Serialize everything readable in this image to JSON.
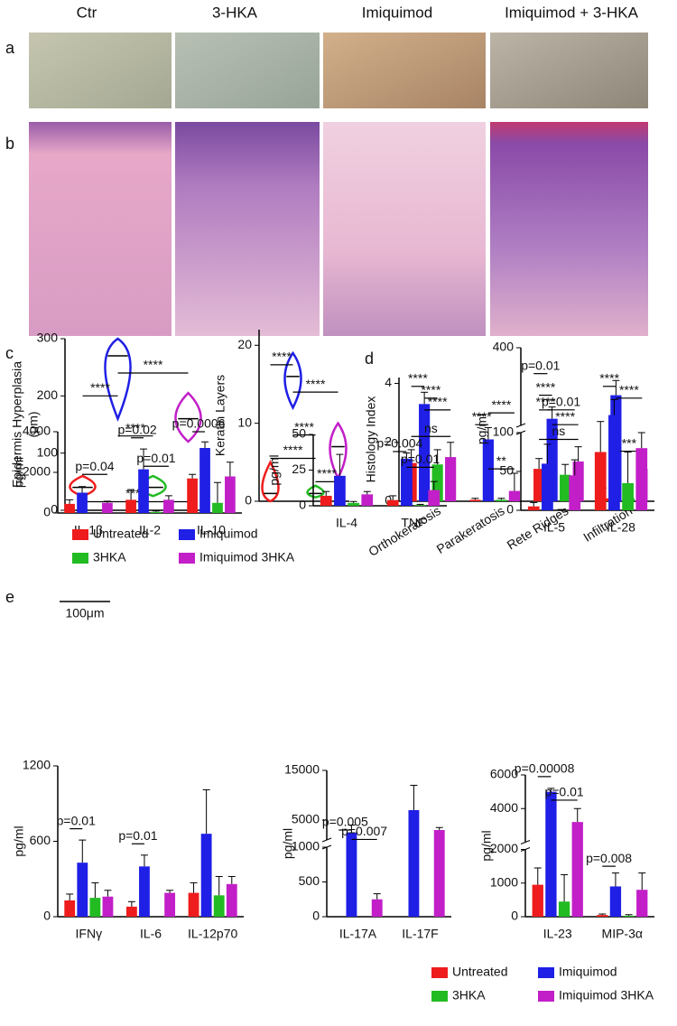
{
  "panels": [
    "a",
    "b",
    "c",
    "d",
    "e"
  ],
  "image_labels": [
    "Ctr",
    "3-HKA",
    "Imiquimod",
    "Imiquimod + 3-HKA"
  ],
  "scale_bar": "100μm",
  "legend": [
    {
      "name": "Untreated",
      "color": "#ee1c1c"
    },
    {
      "name": "Imiquimod",
      "color": "#1f1fe6"
    },
    {
      "name": "3HKA",
      "color": "#22bb22"
    },
    {
      "name": "Imiquimod 3HKA",
      "color": "#c21fc8"
    }
  ],
  "chart_data": [
    {
      "type": "violin",
      "y_label": [
        "Epidermis Hyperplasia",
        "(μm)"
      ],
      "ylim": [
        0,
        300
      ],
      "yticks": [
        0,
        100,
        200,
        300
      ],
      "mins": [
        25,
        160,
        25,
        120
      ],
      "medians": [
        40,
        270,
        40,
        160
      ],
      "maxs": [
        60,
        300,
        60,
        205
      ],
      "annotations": [
        {
          "text": "****",
          "from": 0,
          "to": 1,
          "y": 200
        },
        {
          "text": "****",
          "from": 1,
          "to": 3,
          "y": 240
        },
        {
          "text": "****",
          "from": 1,
          "to": 2,
          "y": 130
        },
        {
          "text": "****",
          "from": 0,
          "to": 3,
          "y": 15
        }
      ]
    },
    {
      "type": "violin",
      "y_label": "Keratin Layers",
      "ylim": [
        0,
        22
      ],
      "yticks": [
        0,
        10,
        20
      ],
      "mins": [
        0,
        12,
        0.5,
        3
      ],
      "medians": [
        1,
        16,
        1,
        7
      ],
      "maxs": [
        5,
        19,
        2,
        10
      ],
      "annotations": [
        {
          "text": "****",
          "from": 0,
          "to": 1,
          "y": 17.5
        },
        {
          "text": "****",
          "from": 1,
          "to": 3,
          "y": 14
        },
        {
          "text": "****",
          "from": 1,
          "to": 2,
          "y": 8.5
        },
        {
          "text": "****",
          "from": 0,
          "to": 2,
          "y": 5.5
        },
        {
          "text": "****",
          "from": 2,
          "to": 3,
          "y": 2.5
        }
      ]
    },
    {
      "type": "bar",
      "y_label": "Histology Index",
      "categories": [
        "Orthokeratosis",
        "Parakeratosis",
        "Rete Ridges",
        "Infiltration"
      ],
      "ylim": [
        0,
        4.2
      ],
      "yticks": [
        0,
        2,
        4
      ],
      "series": [
        {
          "values": [
            1.3,
            0.05,
            1.1,
            0.1
          ],
          "errors": [
            0.45,
            0.05,
            0.35,
            0.35
          ]
        },
        {
          "values": [
            3.3,
            2.1,
            2.8,
            3.6
          ],
          "errors": [
            0.4,
            0.4,
            0.4,
            0.5
          ]
        },
        {
          "values": [
            1.25,
            0.05,
            0.9,
            0.1
          ],
          "errors": [
            0.5,
            0.05,
            0.35,
            0.35
          ]
        },
        {
          "values": [
            1.5,
            0.35,
            1.35,
            1.1
          ],
          "errors": [
            0.5,
            0.6,
            0.5,
            0.55
          ]
        }
      ],
      "annotations": [
        {
          "text": "****",
          "from": [
            0,
            0
          ],
          "to": [
            0,
            1
          ],
          "y": 3.9
        },
        {
          "text": "****",
          "from": [
            0,
            1
          ],
          "to": [
            0,
            2
          ],
          "y": 3.5
        },
        {
          "text": "****",
          "from": [
            0,
            1
          ],
          "to": [
            0,
            3
          ],
          "y": 3.1
        },
        {
          "text": "ns",
          "from": [
            0,
            0
          ],
          "to": [
            0,
            3
          ],
          "y": 2.2
        },
        {
          "text": "****",
          "from": [
            1,
            0
          ],
          "to": [
            1,
            1
          ],
          "y": 2.6
        },
        {
          "text": "****",
          "from": [
            1,
            1
          ],
          "to": [
            1,
            3
          ],
          "y": 3.0
        },
        {
          "text": "**",
          "from": [
            1,
            1
          ],
          "to": [
            1,
            3
          ],
          "y": 1.1
        },
        {
          "text": "****",
          "from": [
            2,
            0
          ],
          "to": [
            2,
            1
          ],
          "y": 3.6
        },
        {
          "text": "****",
          "from": [
            2,
            0
          ],
          "to": [
            2,
            1
          ],
          "y": 3.1
        },
        {
          "text": "****",
          "from": [
            2,
            1
          ],
          "to": [
            2,
            3
          ],
          "y": 2.6
        },
        {
          "text": "ns",
          "from": [
            2,
            0
          ],
          "to": [
            2,
            3
          ],
          "y": 2.1
        },
        {
          "text": "****",
          "from": [
            3,
            0
          ],
          "to": [
            3,
            1
          ],
          "y": 3.9
        },
        {
          "text": "****",
          "from": [
            3,
            1
          ],
          "to": [
            3,
            3
          ],
          "y": 3.5
        },
        {
          "text": "***",
          "from": [
            3,
            1
          ],
          "to": [
            3,
            3
          ],
          "y": 1.7
        }
      ]
    },
    {
      "type": "bar",
      "y_label": "pg/ml",
      "categories": [
        "IL-1β",
        "IL-2",
        "IL-10"
      ],
      "ylim": [
        0,
        4000
      ],
      "yticks": [
        0,
        2000,
        4000
      ],
      "series": [
        {
          "values": [
            450,
            650,
            1700
          ],
          "errors": [
            200,
            500,
            200
          ]
        },
        {
          "values": [
            1000,
            2150,
            3200
          ],
          "errors": [
            300,
            1000,
            300
          ]
        },
        {
          "values": [
            0,
            50,
            500
          ],
          "errors": [
            0,
            50,
            1000
          ]
        },
        {
          "values": [
            500,
            650,
            1800
          ],
          "errors": [
            80,
            200,
            700
          ]
        }
      ],
      "annotations": [
        {
          "text": "p=0.04",
          "from": [
            0,
            1
          ],
          "to": [
            0,
            3
          ],
          "y": 1900
        },
        {
          "text": "p=0.02",
          "from": [
            1,
            0
          ],
          "to": [
            1,
            1
          ],
          "y": 3700
        },
        {
          "text": "p=0.01",
          "from": [
            1,
            1
          ],
          "to": [
            1,
            3
          ],
          "y": 2300
        },
        {
          "text": "p=0.0006",
          "from": [
            2,
            0
          ],
          "to": [
            2,
            1
          ],
          "y": 4000
        }
      ]
    },
    {
      "type": "bar",
      "y_label": "pg/ml",
      "categories": [
        "IL-4",
        "TNF"
      ],
      "ylim": [
        0,
        50
      ],
      "yticks": [
        0,
        25,
        50
      ],
      "series": [
        {
          "values": [
            7,
            4
          ],
          "errors": [
            3,
            3
          ]
        },
        {
          "values": [
            21,
            33
          ],
          "errors": [
            15,
            4
          ]
        },
        {
          "values": [
            2,
            0.5
          ],
          "errors": [
            1,
            0.5
          ]
        },
        {
          "values": [
            8,
            11
          ],
          "errors": [
            2,
            6
          ]
        }
      ],
      "annotations": [
        {
          "text": "p=0.004",
          "from": [
            1,
            0
          ],
          "to": [
            1,
            1
          ],
          "y": 38
        },
        {
          "text": "p=0.01",
          "from": [
            1,
            1
          ],
          "to": [
            1,
            3
          ],
          "y": 27
        }
      ]
    },
    {
      "type": "bar",
      "y_label": "pg/ml",
      "categories": [
        "IL-5",
        "IL-28"
      ],
      "ylim": [
        0,
        400
      ],
      "ybreak": 100,
      "yticks": [
        0,
        50,
        100,
        400
      ],
      "series": [
        {
          "values": [
            5,
            75
          ],
          "errors": [
            5,
            40
          ]
        },
        {
          "values": [
            60,
            140
          ],
          "errors": [
            25,
            60
          ]
        },
        {
          "values": [
            0,
            35
          ],
          "errors": [
            1,
            40
          ]
        },
        {
          "values": [
            45,
            80
          ],
          "errors": [
            20,
            20
          ]
        }
      ],
      "annotations": [
        {
          "text": "p=0.01",
          "from": [
            0,
            0
          ],
          "to": [
            0,
            1
          ],
          "y": 300
        },
        {
          "text": "p=0.01",
          "from": [
            0,
            1
          ],
          "to": [
            0,
            3
          ],
          "y": 160
        }
      ]
    },
    {
      "type": "bar",
      "y_label": "pg/ml",
      "categories": [
        "IFNγ",
        "IL-6",
        "IL-12p70"
      ],
      "ylim": [
        0,
        1200
      ],
      "yticks": [
        0,
        600,
        1200
      ],
      "series": [
        {
          "values": [
            130,
            80,
            190
          ],
          "errors": [
            50,
            40,
            80
          ]
        },
        {
          "values": [
            430,
            400,
            660
          ],
          "errors": [
            180,
            90,
            350
          ]
        },
        {
          "values": [
            150,
            0,
            170
          ],
          "errors": [
            120,
            0,
            150
          ]
        },
        {
          "values": [
            160,
            190,
            260
          ],
          "errors": [
            50,
            20,
            60
          ]
        }
      ],
      "annotations": [
        {
          "text": "p=0.01",
          "from": [
            0,
            0
          ],
          "to": [
            0,
            1
          ],
          "y": 700
        },
        {
          "text": "p=0.01",
          "from": [
            1,
            0
          ],
          "to": [
            1,
            1
          ],
          "y": 580
        }
      ]
    },
    {
      "type": "bar",
      "y_label": "pg/ml",
      "categories": [
        "IL-17A",
        "IL-17F"
      ],
      "ylim": [
        0,
        15000
      ],
      "ybreak": 1000,
      "yticks": [
        0,
        500,
        1000,
        5000,
        15000
      ],
      "series": [
        {
          "values": [
            0,
            0
          ],
          "errors": [
            0,
            0
          ]
        },
        {
          "values": [
            2500,
            7000
          ],
          "errors": [
            1500,
            5000
          ]
        },
        {
          "values": [
            0,
            0
          ],
          "errors": [
            0,
            0
          ]
        },
        {
          "values": [
            250,
            3000
          ],
          "errors": [
            80,
            500
          ]
        }
      ],
      "annotations": [
        {
          "text": "p=0.005",
          "from": [
            0,
            0
          ],
          "to": [
            0,
            1
          ],
          "y": 3000
        },
        {
          "text": "p=0.007",
          "from": [
            0,
            1
          ],
          "to": [
            0,
            3
          ],
          "y": 1100
        }
      ]
    },
    {
      "type": "bar",
      "y_label": "pg/ml",
      "categories": [
        "IL-23",
        "MIP-3α"
      ],
      "ylim": [
        0,
        6000
      ],
      "ybreak": 2000,
      "yticks": [
        0,
        1000,
        2000,
        4000,
        6000
      ],
      "series": [
        {
          "values": [
            950,
            50
          ],
          "errors": [
            500,
            30
          ]
        },
        {
          "values": [
            5000,
            900
          ],
          "errors": [
            200,
            400
          ]
        },
        {
          "values": [
            450,
            30
          ],
          "errors": [
            800,
            30
          ]
        },
        {
          "values": [
            3200,
            800
          ],
          "errors": [
            800,
            500
          ]
        }
      ],
      "annotations": [
        {
          "text": "p=0.00008",
          "from": [
            0,
            0
          ],
          "to": [
            0,
            1
          ],
          "y": 5900
        },
        {
          "text": "p=0.01",
          "from": [
            0,
            1
          ],
          "to": [
            0,
            3
          ],
          "y": 4500
        },
        {
          "text": "p=0.008",
          "from": [
            1,
            0
          ],
          "to": [
            1,
            1
          ],
          "y": 1500
        }
      ]
    }
  ]
}
